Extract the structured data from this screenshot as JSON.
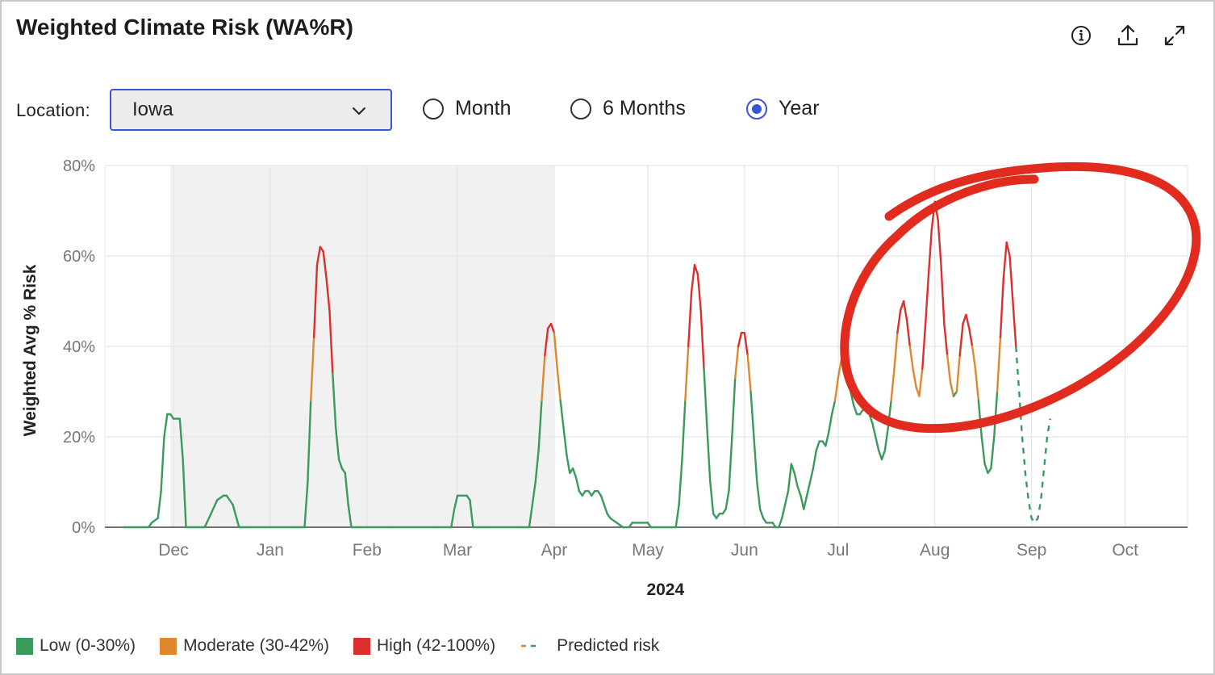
{
  "header": {
    "title": "Weighted Climate Risk (WA%R)",
    "icons": [
      "info-icon",
      "share-icon",
      "expand-icon"
    ]
  },
  "filters": {
    "location_label": "Location:",
    "location_value": "Iowa",
    "period_options": [
      {
        "label": "Month",
        "selected": false
      },
      {
        "label": "6 Months",
        "selected": false
      },
      {
        "label": "Year",
        "selected": true
      }
    ]
  },
  "colors": {
    "low": "#3a9a5c",
    "moderate": "#e0872e",
    "high": "#dd2e2e",
    "annotation": "#e12b1f",
    "accent": "#3a55d4"
  },
  "chart_data": {
    "type": "line",
    "xlabel": "2024",
    "ylabel": "Weighted Avg % Risk",
    "ylim": [
      0,
      80
    ],
    "y_ticks": [
      "0%",
      "20%",
      "40%",
      "60%",
      "80%"
    ],
    "y_tick_values": [
      0,
      20,
      40,
      60,
      80
    ],
    "x_ticks": [
      "Dec",
      "Jan",
      "Feb",
      "Mar",
      "Apr",
      "May",
      "Jun",
      "Jul",
      "Aug",
      "Sep",
      "Oct"
    ],
    "x_tick_days": [
      0,
      31,
      62,
      91,
      122,
      152,
      183,
      213,
      244,
      275,
      305
    ],
    "shaded_range_days": [
      -1,
      122
    ],
    "grid": true,
    "thresholds": {
      "low": [
        0,
        30
      ],
      "moderate": [
        30,
        42
      ],
      "high": [
        42,
        100
      ]
    },
    "legend": [
      {
        "label": "Low (0-30%)",
        "key": "low"
      },
      {
        "label": "Moderate (30-42%)",
        "key": "moderate"
      },
      {
        "label": "High (42-100%)",
        "key": "high"
      },
      {
        "label": "Predicted risk",
        "key": "predicted"
      }
    ],
    "legend_position": "bottom-left",
    "series": [
      {
        "kind": "observed",
        "points": [
          [
            -16,
            0
          ],
          [
            -8,
            0
          ],
          [
            -7,
            1
          ],
          [
            -5,
            2
          ],
          [
            -4,
            8
          ],
          [
            -3,
            20
          ],
          [
            -2,
            25
          ],
          [
            -1,
            25
          ],
          [
            0,
            24
          ],
          [
            1,
            24
          ],
          [
            2,
            24
          ],
          [
            3,
            15
          ],
          [
            4,
            0
          ],
          [
            6,
            0
          ],
          [
            10,
            0
          ],
          [
            12,
            3
          ],
          [
            14,
            6
          ],
          [
            16,
            7
          ],
          [
            17,
            7
          ],
          [
            19,
            5
          ],
          [
            21,
            0
          ],
          [
            24,
            0
          ],
          [
            40,
            0
          ],
          [
            42,
            0
          ],
          [
            43,
            10
          ],
          [
            44,
            28
          ],
          [
            45,
            42
          ],
          [
            46,
            58
          ],
          [
            47,
            62
          ],
          [
            48,
            61
          ],
          [
            49,
            55
          ],
          [
            50,
            48
          ],
          [
            51,
            34
          ],
          [
            52,
            22
          ],
          [
            53,
            15
          ],
          [
            54,
            13
          ],
          [
            55,
            12
          ],
          [
            56,
            5
          ],
          [
            57,
            0
          ],
          [
            60,
            0
          ],
          [
            70,
            0
          ],
          [
            85,
            0
          ],
          [
            89,
            0
          ],
          [
            90,
            4
          ],
          [
            91,
            7
          ],
          [
            92,
            7
          ],
          [
            93,
            7
          ],
          [
            94,
            7
          ],
          [
            95,
            6
          ],
          [
            96,
            0
          ],
          [
            100,
            0
          ],
          [
            110,
            0
          ],
          [
            114,
            0
          ],
          [
            115,
            5
          ],
          [
            116,
            10
          ],
          [
            117,
            17
          ],
          [
            118,
            28
          ],
          [
            119,
            38
          ],
          [
            120,
            44
          ],
          [
            121,
            45
          ],
          [
            122,
            43
          ],
          [
            123,
            35
          ],
          [
            124,
            28
          ],
          [
            125,
            22
          ],
          [
            126,
            16
          ],
          [
            127,
            12
          ],
          [
            128,
            13
          ],
          [
            129,
            11
          ],
          [
            130,
            8
          ],
          [
            131,
            7
          ],
          [
            132,
            8
          ],
          [
            133,
            8
          ],
          [
            134,
            7
          ],
          [
            135,
            8
          ],
          [
            136,
            8
          ],
          [
            137,
            7
          ],
          [
            138,
            5
          ],
          [
            139,
            3
          ],
          [
            140,
            2
          ],
          [
            142,
            1
          ],
          [
            144,
            0
          ],
          [
            146,
            0
          ],
          [
            147,
            1
          ],
          [
            150,
            1
          ],
          [
            152,
            1
          ],
          [
            153,
            0
          ],
          [
            157,
            0
          ],
          [
            161,
            0
          ],
          [
            162,
            5
          ],
          [
            163,
            15
          ],
          [
            164,
            28
          ],
          [
            165,
            40
          ],
          [
            166,
            52
          ],
          [
            167,
            58
          ],
          [
            168,
            56
          ],
          [
            169,
            48
          ],
          [
            170,
            35
          ],
          [
            171,
            22
          ],
          [
            172,
            10
          ],
          [
            173,
            3
          ],
          [
            174,
            2
          ],
          [
            175,
            3
          ],
          [
            176,
            3
          ],
          [
            177,
            4
          ],
          [
            178,
            8
          ],
          [
            179,
            20
          ],
          [
            180,
            33
          ],
          [
            181,
            40
          ],
          [
            182,
            43
          ],
          [
            183,
            43
          ],
          [
            184,
            38
          ],
          [
            185,
            30
          ],
          [
            186,
            20
          ],
          [
            187,
            10
          ],
          [
            188,
            4
          ],
          [
            189,
            2
          ],
          [
            190,
            1
          ],
          [
            191,
            1
          ],
          [
            192,
            1
          ],
          [
            193,
            0
          ],
          [
            194,
            0
          ],
          [
            195,
            2
          ],
          [
            196,
            5
          ],
          [
            197,
            8
          ],
          [
            198,
            14
          ],
          [
            199,
            12
          ],
          [
            200,
            9
          ],
          [
            201,
            7
          ],
          [
            202,
            4
          ],
          [
            203,
            7
          ],
          [
            204,
            10
          ],
          [
            205,
            13
          ],
          [
            206,
            17
          ],
          [
            207,
            19
          ],
          [
            208,
            19
          ],
          [
            209,
            18
          ],
          [
            210,
            21
          ],
          [
            211,
            25
          ],
          [
            212,
            28
          ],
          [
            213,
            33
          ],
          [
            214,
            37
          ],
          [
            215,
            38
          ],
          [
            216,
            35
          ],
          [
            217,
            30
          ],
          [
            218,
            27
          ],
          [
            219,
            25
          ],
          [
            220,
            25
          ],
          [
            221,
            26
          ],
          [
            222,
            26
          ],
          [
            223,
            25
          ],
          [
            224,
            23
          ],
          [
            225,
            20
          ],
          [
            226,
            17
          ],
          [
            227,
            15
          ],
          [
            228,
            17
          ],
          [
            229,
            22
          ],
          [
            230,
            28
          ],
          [
            231,
            35
          ],
          [
            232,
            43
          ],
          [
            233,
            48
          ],
          [
            234,
            50
          ],
          [
            235,
            46
          ],
          [
            236,
            40
          ],
          [
            237,
            35
          ],
          [
            238,
            31
          ],
          [
            239,
            29
          ],
          [
            240,
            35
          ],
          [
            241,
            45
          ],
          [
            242,
            56
          ],
          [
            243,
            66
          ],
          [
            244,
            72
          ],
          [
            245,
            68
          ],
          [
            246,
            58
          ],
          [
            247,
            45
          ],
          [
            248,
            38
          ],
          [
            249,
            32
          ],
          [
            250,
            29
          ],
          [
            251,
            30
          ],
          [
            252,
            38
          ],
          [
            253,
            45
          ],
          [
            254,
            47
          ],
          [
            255,
            44
          ],
          [
            256,
            40
          ],
          [
            257,
            35
          ],
          [
            258,
            28
          ],
          [
            259,
            20
          ],
          [
            260,
            14
          ],
          [
            261,
            12
          ],
          [
            262,
            13
          ],
          [
            263,
            20
          ],
          [
            264,
            30
          ],
          [
            265,
            42
          ],
          [
            266,
            55
          ],
          [
            267,
            63
          ],
          [
            268,
            60
          ],
          [
            269,
            50
          ],
          [
            270,
            40
          ]
        ]
      },
      {
        "kind": "predicted",
        "points": [
          [
            270,
            40
          ],
          [
            271,
            30
          ],
          [
            272,
            20
          ],
          [
            273,
            12
          ],
          [
            274,
            6
          ],
          [
            275,
            2
          ],
          [
            276,
            1
          ],
          [
            277,
            2
          ],
          [
            278,
            6
          ],
          [
            279,
            13
          ],
          [
            280,
            20
          ],
          [
            281,
            24
          ]
        ]
      }
    ]
  }
}
